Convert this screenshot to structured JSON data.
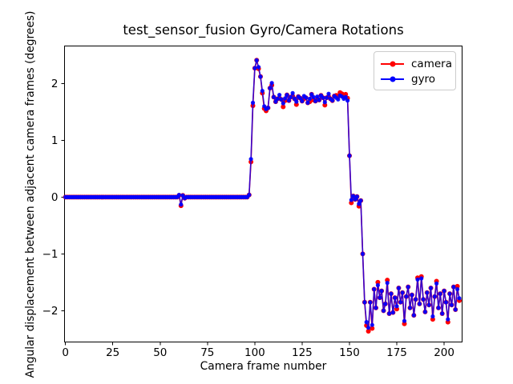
{
  "figure": {
    "background": "#ffffff",
    "frame_color": "#000000"
  },
  "chart_data": {
    "type": "line",
    "title": "test_sensor_fusion Gyro/Camera Rotations",
    "xlabel": "Camera frame number",
    "ylabel": "Angular displacement between adjacent camera frames (degrees)",
    "xlim": [
      -0.5,
      209.5
    ],
    "ylim": [
      -2.55,
      2.66
    ],
    "xticks": [
      0,
      25,
      50,
      75,
      100,
      125,
      150,
      175,
      200
    ],
    "yticks": [
      -2,
      -1,
      0,
      1,
      2
    ],
    "grid": false,
    "legend_position": "upper right",
    "x_description": "camera frame index, one sample per frame from 0 to 208",
    "series": [
      {
        "name": "camera",
        "color": "#ff0000",
        "marker": "o",
        "values": [
          0,
          0,
          0,
          0,
          0,
          0,
          0,
          0,
          0,
          0,
          0,
          0,
          0,
          0,
          0,
          0,
          0,
          0,
          0,
          0,
          0,
          0,
          0,
          0,
          0,
          0,
          0,
          0,
          0,
          0,
          0,
          0,
          0,
          0,
          0,
          0,
          0,
          0,
          0,
          0,
          0,
          0,
          0,
          0,
          0,
          0,
          0,
          0,
          0,
          0,
          0,
          0,
          0,
          0,
          0,
          0,
          0,
          0,
          0,
          0,
          0.03,
          -0.15,
          0.03,
          -0.02,
          0,
          0,
          0,
          0,
          0,
          0,
          0,
          0,
          0,
          0,
          0,
          0,
          0,
          0,
          0,
          0,
          0,
          0,
          0,
          0,
          0,
          0,
          0,
          0,
          0,
          0,
          0,
          0,
          0,
          0,
          0,
          0,
          0,
          0.04,
          0.62,
          1.61,
          2.27,
          2.41,
          2.26,
          2.12,
          1.83,
          1.56,
          1.52,
          1.57,
          1.92,
          1.97,
          1.76,
          1.68,
          1.73,
          1.74,
          1.72,
          1.59,
          1.7,
          1.8,
          1.7,
          1.76,
          1.78,
          1.73,
          1.63,
          1.77,
          1.74,
          1.69,
          1.73,
          1.75,
          1.66,
          1.68,
          1.81,
          1.71,
          1.69,
          1.72,
          1.71,
          1.79,
          1.75,
          1.62,
          1.75,
          1.77,
          1.73,
          1.7,
          1.78,
          1.79,
          1.77,
          1.84,
          1.82,
          1.78,
          1.81,
          1.74,
          0.73,
          -0.1,
          0.02,
          -0.04,
          0.01,
          -0.16,
          -0.06,
          -1.0,
          -1.85,
          -2.26,
          -2.36,
          -1.85,
          -2.31,
          -1.62,
          -1.95,
          -1.5,
          -1.77,
          -1.65,
          -2.0,
          -1.88,
          -1.46,
          -2.05,
          -1.7,
          -2.03,
          -1.77,
          -1.97,
          -1.6,
          -1.85,
          -1.68,
          -2.23,
          -1.75,
          -1.58,
          -1.95,
          -1.72,
          -2.08,
          -1.8,
          -1.42,
          -1.88,
          -1.4,
          -1.8,
          -2.02,
          -1.68,
          -1.9,
          -1.6,
          -2.15,
          -1.75,
          -1.48,
          -1.95,
          -1.7,
          -2.05,
          -1.65,
          -1.85,
          -2.2,
          -1.7,
          -1.9,
          -1.58,
          -1.98,
          -1.57,
          -1.82
        ]
      },
      {
        "name": "gyro",
        "color": "#0000ff",
        "marker": "o",
        "values": [
          0,
          0,
          0,
          0,
          0,
          0,
          0,
          0,
          0,
          0,
          0,
          0,
          0,
          0,
          0,
          0,
          0,
          0,
          0,
          0,
          0,
          0,
          0,
          0,
          0,
          0,
          0,
          0,
          0,
          0,
          0,
          0,
          0,
          0,
          0,
          0,
          0,
          0,
          0,
          0,
          0,
          0,
          0,
          0,
          0,
          0,
          0,
          0,
          0,
          0,
          0,
          0,
          0,
          0,
          0,
          0,
          0,
          0,
          0,
          0,
          0.04,
          -0.13,
          0.03,
          -0.02,
          0,
          0,
          0,
          0,
          0,
          0,
          0,
          0,
          0,
          0,
          0,
          0,
          0,
          0,
          0,
          0,
          0,
          0,
          0,
          0,
          0,
          0,
          0,
          0,
          0,
          0,
          0,
          0,
          0,
          0,
          0,
          0,
          0,
          0.04,
          0.67,
          1.66,
          2.27,
          2.41,
          2.29,
          2.12,
          1.87,
          1.6,
          1.55,
          1.57,
          1.92,
          2.01,
          1.76,
          1.68,
          1.73,
          1.8,
          1.72,
          1.65,
          1.74,
          1.8,
          1.7,
          1.76,
          1.83,
          1.73,
          1.68,
          1.77,
          1.74,
          1.69,
          1.78,
          1.75,
          1.66,
          1.73,
          1.81,
          1.76,
          1.69,
          1.77,
          1.71,
          1.79,
          1.75,
          1.67,
          1.75,
          1.82,
          1.73,
          1.7,
          1.78,
          1.75,
          1.72,
          1.79,
          1.77,
          1.73,
          1.76,
          1.7,
          0.73,
          -0.05,
          0.02,
          -0.04,
          0.01,
          -0.12,
          -0.06,
          -1.0,
          -1.85,
          -2.2,
          -2.3,
          -1.85,
          -2.25,
          -1.62,
          -1.95,
          -1.55,
          -1.77,
          -1.65,
          -2.0,
          -1.88,
          -1.51,
          -2.05,
          -1.7,
          -2.03,
          -1.77,
          -1.92,
          -1.6,
          -1.85,
          -1.68,
          -2.18,
          -1.75,
          -1.58,
          -1.95,
          -1.72,
          -2.08,
          -1.8,
          -1.45,
          -1.88,
          -1.43,
          -1.8,
          -2.02,
          -1.68,
          -1.9,
          -1.6,
          -2.1,
          -1.75,
          -1.52,
          -1.95,
          -1.7,
          -2.05,
          -1.65,
          -1.85,
          -2.15,
          -1.7,
          -1.9,
          -1.58,
          -1.98,
          -1.62,
          -1.78
        ]
      }
    ]
  }
}
